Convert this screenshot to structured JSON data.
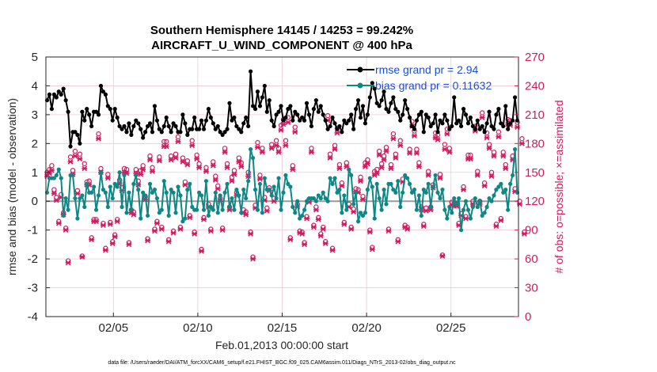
{
  "chart_data": {
    "type": "line",
    "title_line1": "Southern Hemisphere 14145 / 14253 = 99.242%",
    "title_line2": "AIRCRAFT_U_WIND_COMPONENT @ 400 hPa",
    "xlabel": "Feb.01,2013 00:00:00 start",
    "ylabel_left": "rmse and bias (model - observation)",
    "ylabel_right": "# of obs: o=possible; ×=assimilated",
    "x_range_days": [
      1,
      29
    ],
    "x_ticks": [
      {
        "day": 5,
        "label": "02/05"
      },
      {
        "day": 10,
        "label": "02/10"
      },
      {
        "day": 15,
        "label": "02/15"
      },
      {
        "day": 20,
        "label": "02/20"
      },
      {
        "day": 25,
        "label": "02/25"
      }
    ],
    "ylim_left": [
      -4,
      5
    ],
    "yticks_left": [
      "5",
      "4",
      "3",
      "2",
      "1",
      "0",
      "-1",
      "-2",
      "-3",
      "-4"
    ],
    "ylim_right": [
      0,
      270
    ],
    "yticks_right": [
      "270",
      "240",
      "210",
      "180",
      "150",
      "120",
      "90",
      "60",
      "30",
      "0"
    ],
    "grid": true,
    "legend_position": "top-right",
    "colors": {
      "rmse": "#000000",
      "bias": "#0e8787",
      "obs": "#d21a5f",
      "zero_line": "#9a9a9a",
      "legend_text": "#1a4fd6"
    },
    "series": [
      {
        "name": "rmse grand pr = 2.94",
        "axis": "left",
        "values": [
          3.5,
          3.7,
          3.2,
          3.7,
          3.6,
          3.8,
          3.7,
          3.9,
          3.5,
          3.1,
          1.9,
          2.4,
          2.4,
          2.3,
          2.0,
          3.1,
          2.8,
          3.2,
          3.0,
          2.6,
          3.1,
          3.1,
          3.0,
          4.0,
          3.8,
          3.7,
          3.3,
          3.2,
          2.8,
          3.2,
          2.9,
          2.6,
          2.5,
          2.6,
          2.4,
          2.7,
          2.3,
          2.6,
          2.8,
          2.7,
          2.5,
          2.2,
          2.4,
          2.6,
          2.7,
          2.4,
          3.3,
          2.8,
          2.5,
          2.4,
          2.6,
          2.9,
          2.6,
          2.4,
          2.7,
          2.6,
          2.4,
          2.4,
          3.0,
          2.7,
          2.3,
          2.5,
          2.5,
          2.9,
          2.5,
          2.5,
          2.8,
          2.5,
          2.8,
          3.2,
          2.9,
          2.7,
          2.5,
          2.6,
          2.4,
          2.3,
          2.4,
          2.5,
          3.4,
          2.8,
          2.9,
          2.6,
          2.5,
          2.4,
          2.7,
          2.9,
          2.6,
          4.5,
          3.3,
          3.2,
          3.8,
          3.3,
          3.6,
          4.0,
          3.1,
          3.5,
          2.8,
          2.6,
          3.0,
          3.1,
          3.3,
          2.8,
          2.9,
          3.2,
          3.3,
          2.8,
          3.1,
          3.0,
          2.8,
          2.9,
          2.8,
          3.4,
          3.0,
          2.6,
          3.2,
          3.5,
          3.1,
          3.3,
          3.0,
          2.8,
          2.5,
          2.6,
          2.9,
          2.7,
          2.5,
          2.6,
          2.4,
          2.8,
          2.7,
          2.8,
          3.0,
          2.5,
          3.2,
          3.5,
          2.9,
          3.3,
          2.7,
          3.0,
          3.6,
          4.1,
          3.9,
          3.4,
          3.3,
          3.5,
          3.8,
          3.2,
          3.1,
          3.4,
          3.6,
          3.2,
          3.1,
          2.8,
          3.0,
          3.5,
          3.2,
          2.9,
          2.6,
          2.5,
          2.8,
          3.0,
          3.1,
          2.4,
          3.0,
          2.9,
          2.6,
          2.7,
          3.0,
          2.4,
          2.8,
          2.7,
          3.0,
          2.8,
          2.5,
          2.6,
          3.6,
          2.7,
          2.8,
          2.6,
          3.2,
          3.0,
          2.7,
          2.9,
          2.6,
          2.5,
          2.8,
          2.5,
          2.6,
          2.4,
          2.7,
          3.1,
          2.6,
          2.5,
          3.0,
          3.2,
          2.7,
          2.6,
          3.3,
          2.5,
          2.7,
          2.8,
          3.6,
          2.8
        ]
      },
      {
        "name": "bias grand pr = 0.11632",
        "axis": "left",
        "values": [
          0.3,
          0.8,
          0.8,
          0.8,
          0.9,
          1.1,
          0.8,
          -0.5,
          0.1,
          -0.3,
          0.9,
          0.9,
          0.1,
          -0.6,
          0.1,
          0.2,
          -0.2,
          0.6,
          0.3,
          0.3,
          0.5,
          -0.3,
          0.2,
          1.0,
          0.4,
          0.3,
          -0.2,
          0.5,
          0.1,
          0.6,
          0.5,
          1.0,
          -0.2,
          0.9,
          -0.4,
          0.3,
          -0.3,
          0.6,
          0.9,
          0.4,
          -0.6,
          0.3,
          0.2,
          -0.5,
          0.6,
          0.3,
          0.4,
          0.1,
          -0.4,
          -0.3,
          0.7,
          0.3,
          -0.5,
          0.4,
          0.3,
          -0.4,
          0.5,
          0.2,
          -0.7,
          -0.6,
          0.4,
          0.6,
          -0.2,
          -0.3,
          -0.3,
          0.3,
          0.2,
          -0.3,
          0.7,
          -0.5,
          -0.2,
          -0.3,
          0.3,
          -0.4,
          0.2,
          -0.3,
          0.3,
          0.6,
          -0.2,
          0.1,
          -0.3,
          0.4,
          0.2,
          -0.4,
          0.4,
          0.1,
          0.7,
          1.8,
          1.5,
          0.4,
          -0.3,
          0.6,
          -0.4,
          0.8,
          0.4,
          0.4,
          0.2,
          0.5,
          0.1,
          0.8,
          -0.3,
          0.3,
          0.9,
          0.6,
          0.5,
          -0.2,
          -0.4,
          0.0,
          -0.6,
          -0.5,
          -0.3,
          0.0,
          0.1,
          0.1,
          0.1,
          0.0,
          0.2,
          0.1,
          0.3,
          0.1,
          0.0,
          0.8,
          0.6,
          0.8,
          0.3,
          0.4,
          -0.4,
          0.2,
          -0.3,
          1.1,
          0.9,
          -0.1,
          0.3,
          -0.7,
          -0.4,
          -0.5,
          -0.4,
          0.4,
          0.8,
          0.5,
          -0.6,
          0.6,
          0.1,
          -0.3,
          0.4,
          -0.1,
          0.6,
          0.6,
          0.4,
          0.3,
          0.7,
          -0.2,
          0.3,
          0.9,
          0.8,
          0.6,
          0.3,
          0.4,
          -0.3,
          0.2,
          -0.5,
          0.4,
          0.3,
          0.6,
          -0.2,
          0.5,
          0.9,
          0.3,
          0.1,
          0.4,
          -0.3,
          -0.6,
          -0.2,
          -0.4,
          0.1,
          -0.1,
          0.1,
          -1.0,
          -0.3,
          0.0,
          -0.3,
          -0.6,
          -0.2,
          0.1,
          -0.2,
          0.0,
          -0.5,
          -0.4,
          -0.2,
          0.1,
          0.0,
          0.2,
          0.4,
          0.5,
          0.6,
          0.3,
          0.4,
          -0.3,
          0.6,
          0.9,
          1.8,
          0.3
        ]
      },
      {
        "name": "possible obs",
        "axis": "right",
        "values": [
          150,
          153,
          157,
          132,
          124,
          99,
          127,
          108,
          92,
          58,
          166,
          152,
          172,
          131,
          169,
          63,
          159,
          140,
          141,
          82,
          101,
          101,
          190,
          154,
          97,
          71,
          148,
          98,
          78,
          85,
          101,
          142,
          134,
          154,
          153,
          77,
          111,
          109,
          153,
          141,
          152,
          157,
          125,
          81,
          167,
          155,
          91,
          99,
          166,
          93,
          182,
          182,
          80,
          167,
          89,
          169,
          187,
          93,
          165,
          140,
          162,
          105,
          183,
          88,
          168,
          159,
          70,
          103,
          155,
          117,
          91,
          161,
          146,
          136,
          123,
          92,
          175,
          159,
          114,
          145,
          152,
          129,
          165,
          160,
          111,
          109,
          150,
          88,
          62,
          116,
          181,
          147,
          175,
          124,
          113,
          134,
          179,
          123,
          183,
          175,
          199,
          205,
          183,
          207,
          82,
          157,
          197,
          117,
          89,
          88,
          77,
          104,
          122,
          175,
          95,
          114,
          103,
          86,
          93,
          78,
          209,
          169,
          71,
          178,
          196,
          158,
          139,
          98,
          160,
          117,
          93,
          112,
          133,
          132,
          145,
          125,
          160,
          163,
          90,
          72,
          151,
          153,
          172,
          159,
          167,
          176,
          91,
          158,
          190,
          169,
          80,
          183,
          143,
          95,
          93,
          174,
          203,
          193,
          174,
          160,
          114,
          96,
          113,
          151,
          114,
          137,
          191,
          189,
          148,
          64,
          179,
          195,
          175,
          119,
          118,
          118,
          97,
          107,
          135,
          104,
          168,
          168,
          120,
          198,
          151,
          120,
          212,
          139,
          191,
          179,
          150,
          171,
          96,
          192,
          102,
          171,
          158,
          205,
          204,
          167,
          133,
          202,
          120,
          185,
          88
        ]
      },
      {
        "name": "assimilated obs",
        "axis": "right",
        "values": [
          146,
          149,
          152,
          128,
          121,
          97,
          124,
          106,
          90,
          56,
          161,
          148,
          167,
          128,
          164,
          62,
          154,
          137,
          137,
          80,
          99,
          99,
          185,
          150,
          95,
          69,
          144,
          96,
          76,
          83,
          99,
          138,
          131,
          150,
          149,
          75,
          108,
          106,
          149,
          137,
          148,
          153,
          122,
          79,
          163,
          151,
          89,
          97,
          162,
          91,
          177,
          177,
          78,
          163,
          87,
          165,
          182,
          91,
          161,
          137,
          158,
          103,
          178,
          86,
          164,
          155,
          68,
          101,
          151,
          114,
          89,
          157,
          142,
          133,
          120,
          90,
          171,
          155,
          111,
          141,
          148,
          126,
          161,
          156,
          108,
          106,
          146,
          86,
          60,
          113,
          176,
          143,
          171,
          121,
          110,
          131,
          175,
          120,
          178,
          171,
          194,
          200,
          178,
          202,
          80,
          153,
          192,
          114,
          87,
          86,
          75,
          102,
          119,
          171,
          93,
          111,
          101,
          84,
          91,
          76,
          204,
          165,
          69,
          174,
          191,
          154,
          136,
          96,
          156,
          114,
          91,
          109,
          130,
          129,
          141,
          122,
          156,
          159,
          88,
          70,
          147,
          149,
          168,
          155,
          163,
          172,
          89,
          154,
          185,
          165,
          78,
          178,
          140,
          93,
          91,
          170,
          198,
          188,
          170,
          156,
          111,
          94,
          110,
          147,
          111,
          134,
          186,
          184,
          144,
          63,
          174,
          190,
          171,
          116,
          115,
          115,
          95,
          105,
          132,
          102,
          164,
          164,
          117,
          193,
          147,
          117,
          207,
          136,
          186,
          175,
          146,
          167,
          94,
          187,
          100,
          167,
          154,
          200,
          199,
          163,
          130,
          197,
          117,
          180,
          86
        ]
      }
    ],
    "footer_note": "data file: /Users/raeder/DAI/ATM_forcXX/CAM6_setup/f.e21.FHIST_BGC.f09_025.CAM6assim.011/Diags_NTrS_2013-02/obs_diag_output.nc"
  }
}
